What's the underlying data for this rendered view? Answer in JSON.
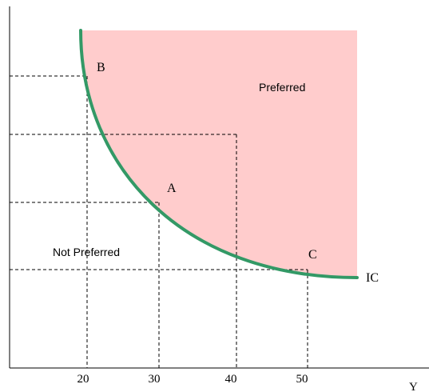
{
  "diagram": {
    "region_labels": {
      "preferred": "Preferred",
      "not_preferred": "Not Preferred"
    },
    "point_labels": {
      "a": "A",
      "b": "B",
      "c": "C"
    },
    "curve_label": "IC",
    "axis": {
      "x_label": "Y",
      "x_ticks": [
        "20",
        "30",
        "40",
        "50"
      ]
    },
    "colors": {
      "preferred_fill": "#ffcccc",
      "curve": "#339966",
      "axis": "#000000",
      "guides": "#000000"
    }
  }
}
